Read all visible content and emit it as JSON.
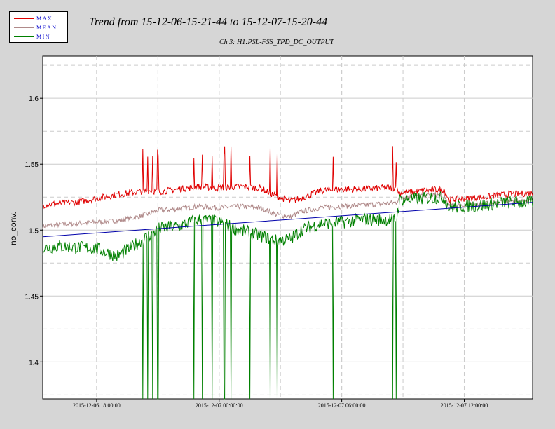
{
  "legend": {
    "entries": [
      {
        "label": "MAX",
        "color": "#e00000"
      },
      {
        "label": "MEAN",
        "color": "#b08a8a"
      },
      {
        "label": "MIN",
        "color": "#008000"
      }
    ]
  },
  "colors": {
    "trend_line": "#0000aa",
    "grid": "#cccccc",
    "plot_bg": "#ffffff",
    "page_bg": "#d6d6d6"
  },
  "chart_data": {
    "type": "line",
    "title": "Trend from 15-12-06-15-21-44 to 15-12-07-15-20-44",
    "subtitle": "Ch 3: H1:PSL-FSS_TPD_DC_OUTPUT",
    "xlabel": "",
    "ylabel": "no_conv.",
    "xlim": [
      "2015-12-06 15:21:44",
      "2015-12-07 15:20:44"
    ],
    "ylim": [
      1.372,
      1.632
    ],
    "yticks": [
      1.4,
      1.45,
      1.5,
      1.55,
      1.6
    ],
    "ytick_labels": [
      "1.4",
      "1.45",
      "1.5",
      "1.55",
      "1.6"
    ],
    "xticks": [
      "2015-12-06 18:00:00",
      "2015-12-07 00:00:00",
      "2015-12-07 06:00:00",
      "2015-12-07 12:00:00"
    ],
    "xtick_labels": [
      "2015-12-06 18:00:00",
      "2015-12-07 00:00:00",
      "2015-12-07 06:00:00",
      "2015-12-07 12:00:00"
    ],
    "grid": true,
    "legend_position": "top-left",
    "series": [
      {
        "name": "MAX",
        "x": [
          "2015-12-06 15:21:44",
          "2015-12-06 16:00:00",
          "2015-12-06 17:00:00",
          "2015-12-06 18:00:00",
          "2015-12-06 19:00:00",
          "2015-12-06 20:00:00",
          "2015-12-06 20:40:00",
          "2015-12-06 21:00:00",
          "2015-12-06 22:00:00",
          "2015-12-06 23:00:00",
          "2015-12-07 00:00:00",
          "2015-12-07 01:00:00",
          "2015-12-07 02:00:00",
          "2015-12-07 02:45:00",
          "2015-12-07 03:30:00",
          "2015-12-07 04:00:00",
          "2015-12-07 05:00:00",
          "2015-12-07 06:00:00",
          "2015-12-07 07:00:00",
          "2015-12-07 08:00:00",
          "2015-12-07 08:40:00",
          "2015-12-07 08:50:00",
          "2015-12-07 10:00:00",
          "2015-12-07 11:00:00",
          "2015-12-07 11:15:00",
          "2015-12-07 12:00:00",
          "2015-12-07 13:00:00",
          "2015-12-07 14:00:00",
          "2015-12-07 15:20:44"
        ],
        "values": [
          1.519,
          1.52,
          1.521,
          1.524,
          1.527,
          1.529,
          1.53,
          1.529,
          1.531,
          1.533,
          1.532,
          1.533,
          1.532,
          1.526,
          1.522,
          1.524,
          1.53,
          1.531,
          1.531,
          1.532,
          1.532,
          1.528,
          1.53,
          1.531,
          1.523,
          1.524,
          1.525,
          1.527,
          1.528
        ]
      },
      {
        "name": "MEAN",
        "x": [
          "2015-12-06 15:21:44",
          "2015-12-06 16:00:00",
          "2015-12-06 17:00:00",
          "2015-12-06 18:00:00",
          "2015-12-06 19:00:00",
          "2015-12-06 20:00:00",
          "2015-12-06 20:40:00",
          "2015-12-06 21:00:00",
          "2015-12-06 22:00:00",
          "2015-12-06 23:00:00",
          "2015-12-07 00:00:00",
          "2015-12-07 01:00:00",
          "2015-12-07 02:00:00",
          "2015-12-07 02:45:00",
          "2015-12-07 03:30:00",
          "2015-12-07 04:00:00",
          "2015-12-07 05:00:00",
          "2015-12-07 06:00:00",
          "2015-12-07 07:00:00",
          "2015-12-07 08:00:00",
          "2015-12-07 08:40:00",
          "2015-12-07 08:50:00",
          "2015-12-07 10:00:00",
          "2015-12-07 11:00:00",
          "2015-12-07 11:15:00",
          "2015-12-07 12:00:00",
          "2015-12-07 13:00:00",
          "2015-12-07 14:00:00",
          "2015-12-07 15:20:44"
        ],
        "values": [
          1.503,
          1.504,
          1.505,
          1.506,
          1.507,
          1.51,
          1.513,
          1.515,
          1.516,
          1.518,
          1.517,
          1.518,
          1.517,
          1.512,
          1.51,
          1.514,
          1.517,
          1.518,
          1.519,
          1.52,
          1.521,
          1.525,
          1.526,
          1.527,
          1.518,
          1.519,
          1.52,
          1.522,
          1.522
        ]
      },
      {
        "name": "MIN",
        "x": [
          "2015-12-06 15:21:44",
          "2015-12-06 16:00:00",
          "2015-12-06 17:00:00",
          "2015-12-06 18:00:00",
          "2015-12-06 19:00:00",
          "2015-12-06 20:00:00",
          "2015-12-06 20:40:00",
          "2015-12-06 21:00:00",
          "2015-12-06 22:00:00",
          "2015-12-06 23:00:00",
          "2015-12-07 00:00:00",
          "2015-12-07 01:00:00",
          "2015-12-07 02:00:00",
          "2015-12-07 02:45:00",
          "2015-12-07 03:30:00",
          "2015-12-07 04:00:00",
          "2015-12-07 05:00:00",
          "2015-12-07 06:00:00",
          "2015-12-07 07:00:00",
          "2015-12-07 08:00:00",
          "2015-12-07 08:40:00",
          "2015-12-07 08:50:00",
          "2015-12-07 10:00:00",
          "2015-12-07 11:00:00",
          "2015-12-07 11:15:00",
          "2015-12-07 12:00:00",
          "2015-12-07 13:00:00",
          "2015-12-07 14:00:00",
          "2015-12-07 15:20:44"
        ],
        "values": [
          1.486,
          1.488,
          1.487,
          1.486,
          1.48,
          1.49,
          1.497,
          1.501,
          1.503,
          1.508,
          1.506,
          1.5,
          1.496,
          1.492,
          1.493,
          1.5,
          1.505,
          1.506,
          1.508,
          1.508,
          1.508,
          1.523,
          1.524,
          1.525,
          1.517,
          1.518,
          1.519,
          1.521,
          1.521
        ]
      },
      {
        "name": "",
        "x": [
          "2015-12-06 15:21:44",
          "2015-12-07 15:20:44"
        ],
        "values": [
          1.495,
          1.521
        ]
      }
    ],
    "dropouts": [
      "2015-12-06 20:15:00",
      "2015-12-06 20:30:00",
      "2015-12-06 20:45:00",
      "2015-12-06 21:00:00",
      "2015-12-06 22:45:00",
      "2015-12-06 23:10:00",
      "2015-12-06 23:40:00",
      "2015-12-07 00:15:00",
      "2015-12-07 00:35:00",
      "2015-12-07 01:30:00",
      "2015-12-07 02:30:00",
      "2015-12-07 02:50:00",
      "2015-12-07 05:35:00",
      "2015-12-07 08:30:00",
      "2015-12-07 08:40:00"
    ]
  }
}
